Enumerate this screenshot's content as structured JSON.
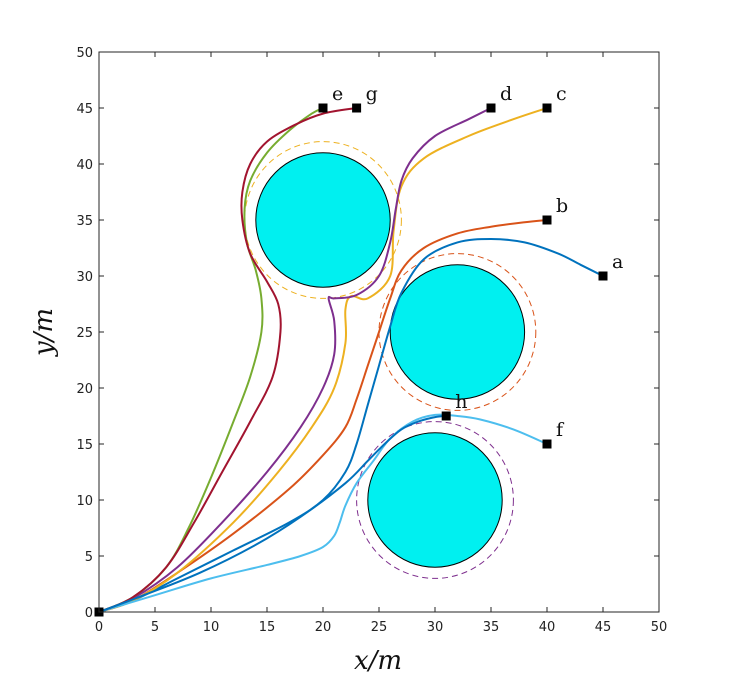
{
  "chart_data": {
    "type": "line",
    "title": "",
    "xlabel": "x/m",
    "ylabel": "y/m",
    "xlim": [
      0,
      50
    ],
    "ylim": [
      0,
      50
    ],
    "xticks": [
      0,
      5,
      10,
      15,
      20,
      25,
      30,
      35,
      40,
      45,
      50
    ],
    "yticks": [
      0,
      5,
      10,
      15,
      20,
      25,
      30,
      35,
      40,
      45,
      50
    ],
    "xtick_labels": [
      "0",
      "5",
      "10",
      "15",
      "20",
      "25",
      "30",
      "35",
      "40",
      "45",
      "50"
    ],
    "ytick_labels": [
      "0",
      "5",
      "10",
      "15",
      "20",
      "25",
      "30",
      "35",
      "40",
      "45",
      "50"
    ],
    "grid": false,
    "obstacles": [
      {
        "name": "obstacle-upper",
        "cx": 20,
        "cy": 35,
        "r": 6,
        "safety_r": 7,
        "fill": "#00f0f0",
        "safety_color": "#edb120"
      },
      {
        "name": "obstacle-middle",
        "cx": 32,
        "cy": 25,
        "r": 6,
        "safety_r": 7,
        "fill": "#00f0f0",
        "safety_color": "#d95319"
      },
      {
        "name": "obstacle-lower",
        "cx": 30,
        "cy": 10,
        "r": 6,
        "safety_r": 7,
        "fill": "#00f0f0",
        "safety_color": "#7e2f8e"
      }
    ],
    "start": {
      "label": "",
      "x": 0,
      "y": 0
    },
    "targets": [
      {
        "label": "a",
        "x": 45,
        "y": 30
      },
      {
        "label": "b",
        "x": 40,
        "y": 35
      },
      {
        "label": "c",
        "x": 40,
        "y": 45
      },
      {
        "label": "d",
        "x": 35,
        "y": 45
      },
      {
        "label": "e",
        "x": 20,
        "y": 45
      },
      {
        "label": "f",
        "x": 40,
        "y": 15
      },
      {
        "label": "g",
        "x": 23,
        "y": 45
      },
      {
        "label": "h",
        "x": 31,
        "y": 17.5
      }
    ],
    "series": [
      {
        "name": "a",
        "color": "#0072bd",
        "x": [
          0,
          3,
          7,
          12,
          17,
          20,
          22,
          23,
          24,
          25,
          26,
          27,
          29,
          32,
          35,
          38,
          41,
          43,
          45
        ],
        "y": [
          0,
          1,
          3,
          5.5,
          8,
          10,
          12.5,
          15,
          18.5,
          22,
          25.5,
          28.5,
          31.5,
          33,
          33.3,
          33,
          32,
          31,
          30
        ]
      },
      {
        "name": "b",
        "color": "#d95319",
        "x": [
          0,
          3,
          7,
          12,
          17,
          20,
          22,
          23,
          24,
          25,
          26,
          27,
          29,
          32,
          35,
          38,
          40
        ],
        "y": [
          0,
          1,
          3.5,
          7,
          11,
          14,
          16.5,
          19,
          22,
          25,
          28,
          30.5,
          32.5,
          33.8,
          34.4,
          34.8,
          35
        ]
      },
      {
        "name": "c",
        "color": "#edb120",
        "x": [
          0,
          3,
          7,
          12,
          16,
          19,
          21,
          22,
          22,
          22.5,
          24,
          26,
          26.3,
          27,
          29,
          33,
          37,
          40
        ],
        "y": [
          0,
          1,
          3.5,
          8,
          12.5,
          16.5,
          20,
          24,
          27,
          28.2,
          28,
          30,
          34,
          38,
          40.5,
          42.5,
          44,
          45
        ]
      },
      {
        "name": "d",
        "color": "#7e2f8e",
        "x": [
          0,
          3,
          7,
          11,
          15,
          18,
          20,
          21,
          21,
          20.5,
          21,
          23,
          25,
          26,
          26.5,
          27,
          28,
          30,
          33,
          35
        ],
        "y": [
          0,
          1.2,
          4,
          8,
          12.5,
          16.5,
          20,
          23,
          26,
          28,
          28,
          28.3,
          30,
          33,
          36,
          38.5,
          40.5,
          42.5,
          44,
          45
        ]
      },
      {
        "name": "e",
        "color": "#77ac30",
        "x": [
          0,
          3,
          6,
          8,
          10,
          12,
          13.5,
          14.5,
          14.5,
          14,
          13.2,
          13,
          13.5,
          15,
          17,
          19,
          20
        ],
        "y": [
          0,
          1.3,
          4,
          7.5,
          12,
          17,
          21,
          25,
          28,
          30.5,
          33,
          36,
          38.5,
          41,
          43,
          44.5,
          45
        ]
      },
      {
        "name": "f",
        "color": "#4dbeee",
        "x": [
          0,
          5,
          10,
          15,
          18,
          20,
          21,
          21.5,
          22,
          23,
          24.5,
          26,
          28,
          30,
          32,
          34,
          37,
          40
        ],
        "y": [
          0,
          1.5,
          3,
          4.2,
          5,
          5.8,
          6.8,
          8,
          9.5,
          11.5,
          13.5,
          15.5,
          17,
          17.6,
          17.5,
          17.2,
          16.3,
          15
        ]
      },
      {
        "name": "g",
        "color": "#a2142f",
        "x": [
          0,
          3,
          6,
          8.5,
          11,
          13.5,
          15.5,
          16.2,
          16,
          15,
          13.5,
          12.8,
          12.8,
          13.5,
          15,
          17.5,
          20,
          23
        ],
        "y": [
          0,
          1.3,
          4,
          8,
          12.5,
          17,
          21,
          25,
          27.5,
          29.5,
          32,
          35,
          37.5,
          40,
          42,
          43.5,
          44.5,
          45
        ]
      },
      {
        "name": "h",
        "color": "#0072bd",
        "x": [
          0,
          4,
          9,
          14,
          18,
          22,
          24,
          25.5,
          27,
          28.5,
          30,
          31
        ],
        "y": [
          0,
          1.5,
          3.5,
          6,
          8.5,
          11.5,
          13.5,
          15,
          16.3,
          17,
          17.4,
          17.5
        ]
      }
    ]
  },
  "colors": {
    "axes": "#262626",
    "marker": "#000000",
    "background": "#ffffff"
  }
}
